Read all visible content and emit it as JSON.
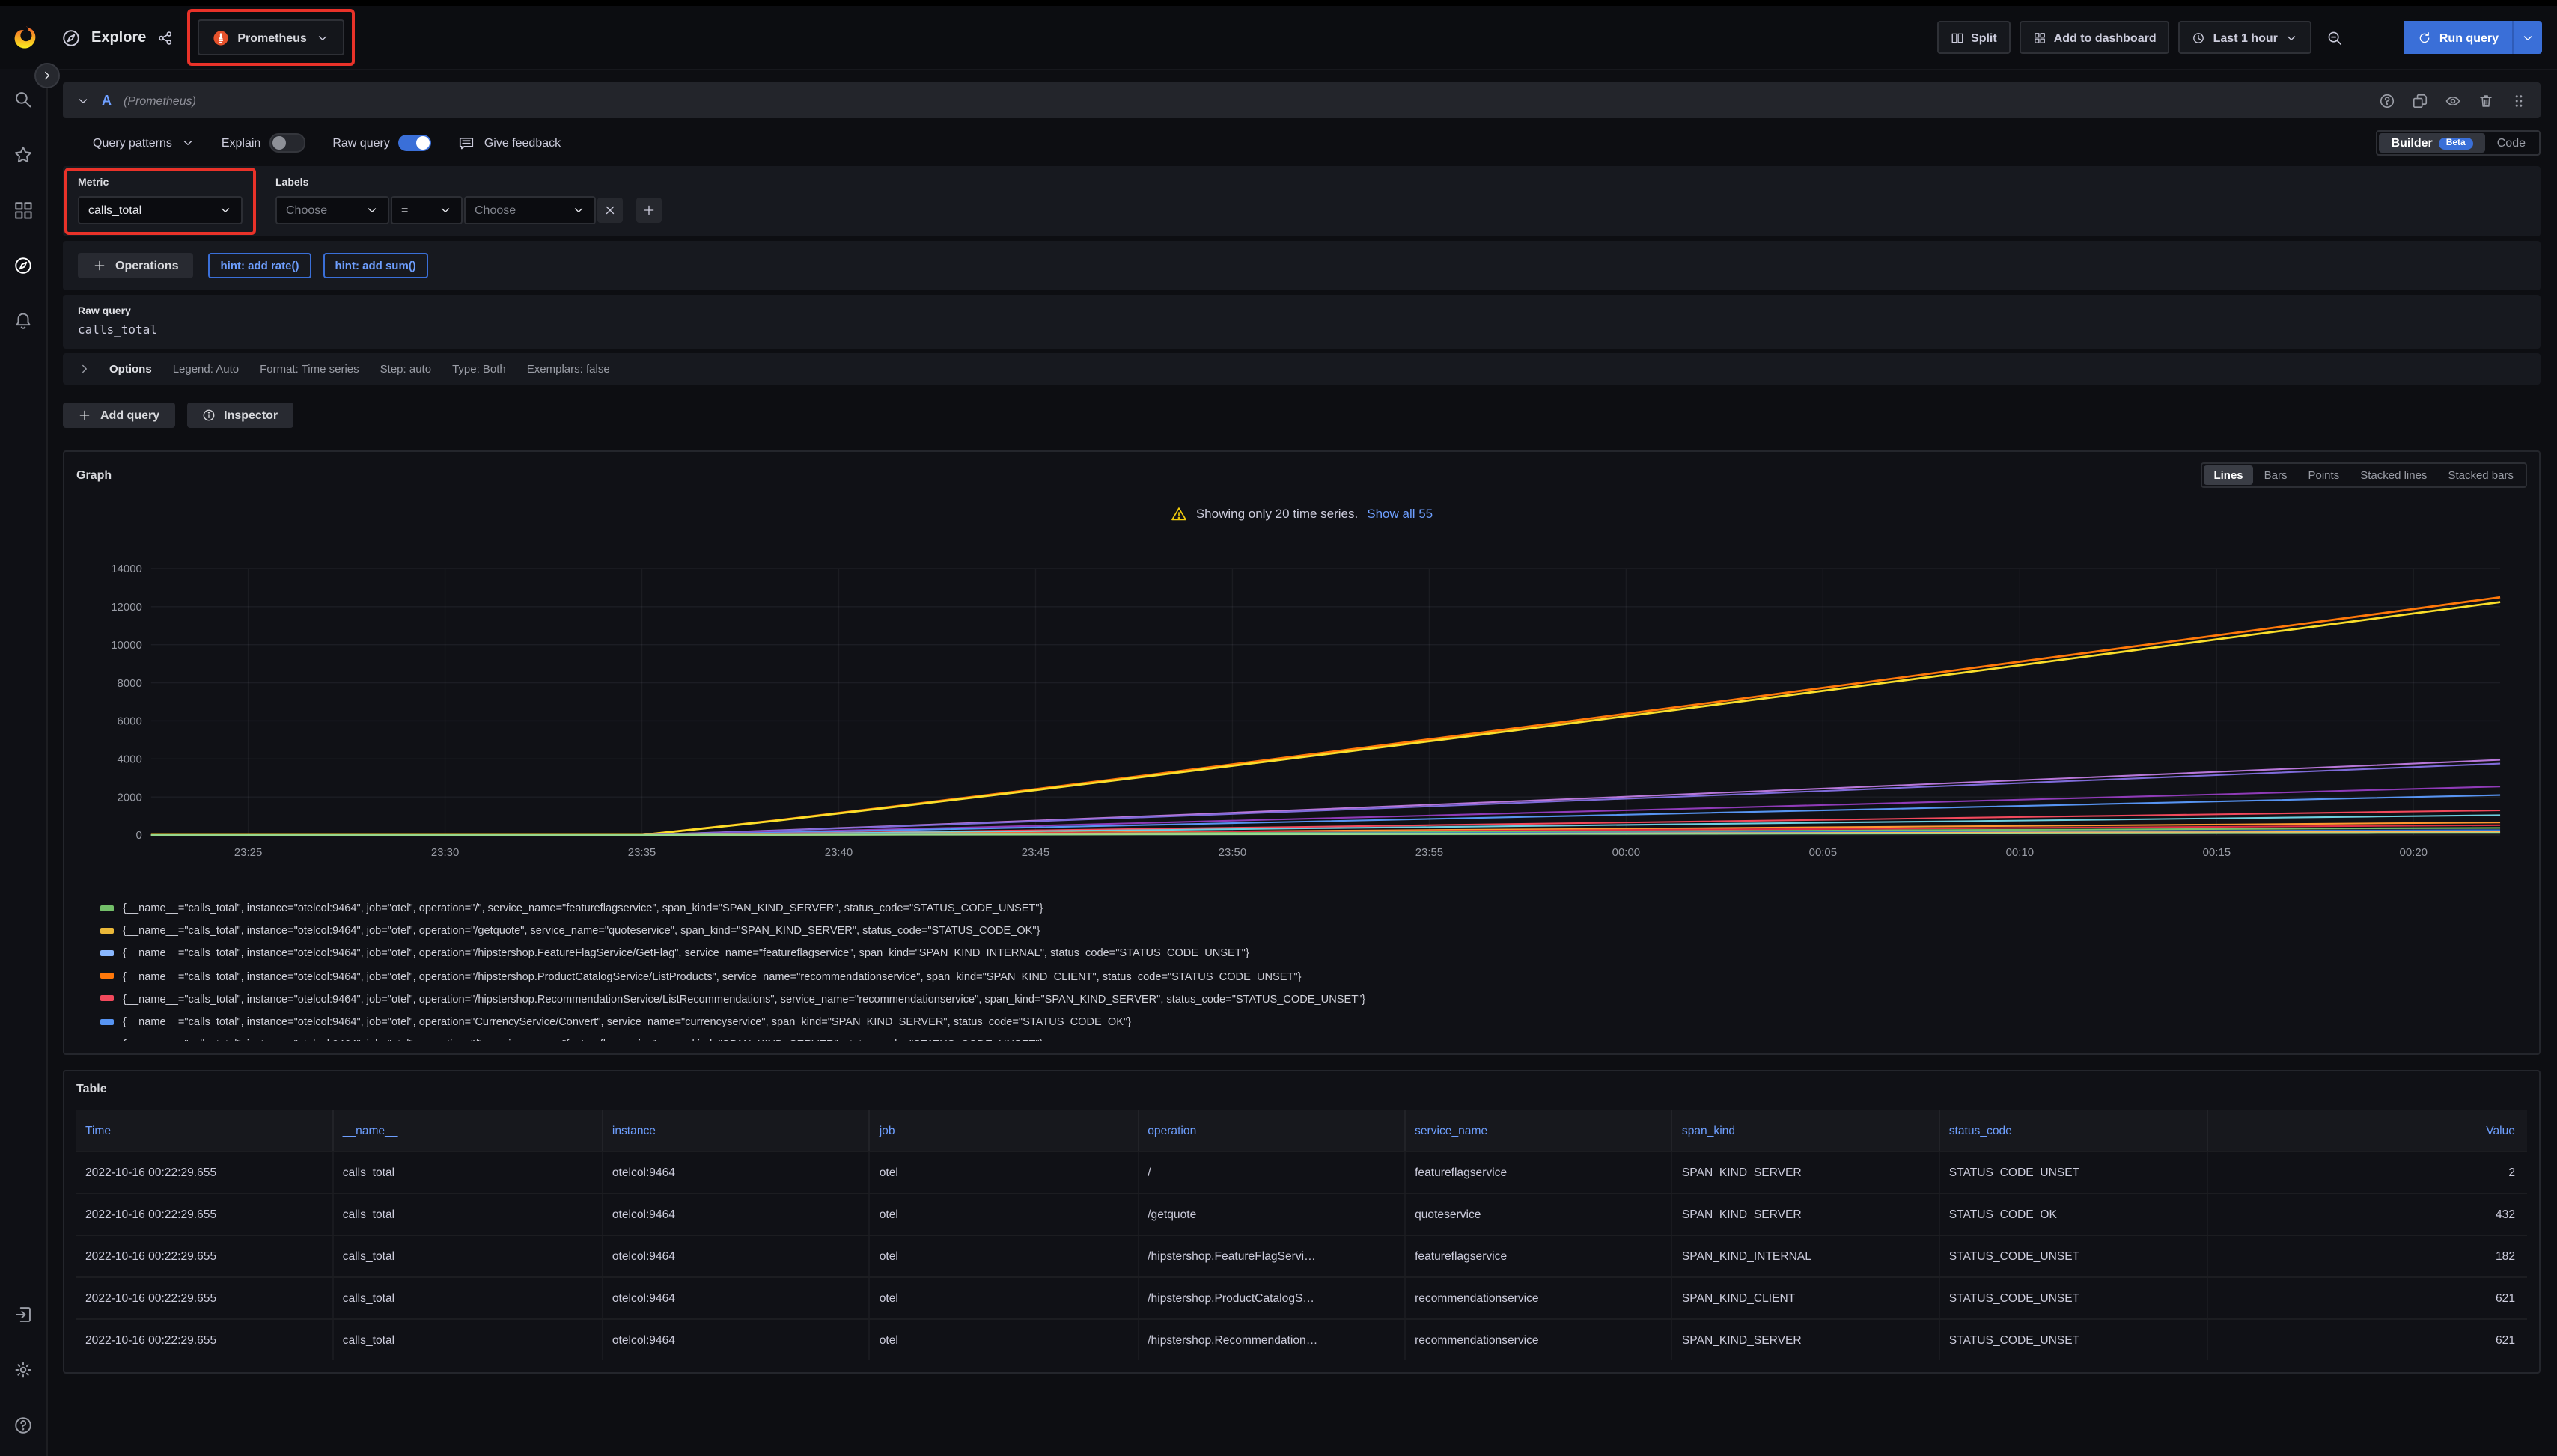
{
  "header": {
    "title": "Explore",
    "datasource": "Prometheus",
    "split": "Split",
    "add_to_dashboard": "Add to dashboard",
    "time_range": "Last 1 hour",
    "run_query": "Run query"
  },
  "query": {
    "ref_id": "A",
    "datasource_note": "(Prometheus)",
    "query_patterns": "Query patterns",
    "explain_label": "Explain",
    "raw_query_toggle_label": "Raw query",
    "give_feedback": "Give feedback",
    "builder": "Builder",
    "beta": "Beta",
    "code": "Code",
    "metric_label": "Metric",
    "metric_value": "calls_total",
    "labels_label": "Labels",
    "label_key_placeholder": "Choose",
    "label_operator": "=",
    "label_value_placeholder": "Choose",
    "operations_label": "Operations",
    "hints": [
      "hint: add rate()",
      "hint: add sum()"
    ],
    "raw_query_label": "Raw query",
    "raw_query_value": "calls_total",
    "options_label": "Options",
    "options_items": [
      "Legend: Auto",
      "Format: Time series",
      "Step: auto",
      "Type: Both",
      "Exemplars: false"
    ],
    "add_query": "Add query",
    "inspector": "Inspector"
  },
  "graph": {
    "title": "Graph",
    "modes": [
      "Lines",
      "Bars",
      "Points",
      "Stacked lines",
      "Stacked bars"
    ],
    "active_mode": "Lines",
    "warning_text": "Showing only 20 time series.",
    "show_all_link": "Show all 55",
    "legend": [
      {
        "color": "#73BF69",
        "label": "{__name__=\"calls_total\", instance=\"otelcol:9464\", job=\"otel\", operation=\"/\", service_name=\"featureflagservice\", span_kind=\"SPAN_KIND_SERVER\", status_code=\"STATUS_CODE_UNSET\"}"
      },
      {
        "color": "#EAB839",
        "label": "{__name__=\"calls_total\", instance=\"otelcol:9464\", job=\"otel\", operation=\"/getquote\", service_name=\"quoteservice\", span_kind=\"SPAN_KIND_SERVER\", status_code=\"STATUS_CODE_OK\"}"
      },
      {
        "color": "#8AB8FF",
        "label": "{__name__=\"calls_total\", instance=\"otelcol:9464\", job=\"otel\", operation=\"/hipstershop.FeatureFlagService/GetFlag\", service_name=\"featureflagservice\", span_kind=\"SPAN_KIND_INTERNAL\", status_code=\"STATUS_CODE_UNSET\"}"
      },
      {
        "color": "#FF780A",
        "label": "{__name__=\"calls_total\", instance=\"otelcol:9464\", job=\"otel\", operation=\"/hipstershop.ProductCatalogService/ListProducts\", service_name=\"recommendationservice\", span_kind=\"SPAN_KIND_CLIENT\", status_code=\"STATUS_CODE_UNSET\"}"
      },
      {
        "color": "#F2495C",
        "label": "{__name__=\"calls_total\", instance=\"otelcol:9464\", job=\"otel\", operation=\"/hipstershop.RecommendationService/ListRecommendations\", service_name=\"recommendationservice\", span_kind=\"SPAN_KIND_SERVER\", status_code=\"STATUS_CODE_UNSET\"}"
      },
      {
        "color": "#5794F2",
        "label": "{__name__=\"calls_total\", instance=\"otelcol:9464\", job=\"otel\", operation=\"CurrencyService/Convert\", service_name=\"currencyservice\", span_kind=\"SPAN_KIND_SERVER\", status_code=\"STATUS_CODE_OK\"}"
      }
    ],
    "legend_clipped_row": true
  },
  "chart_data": {
    "type": "line",
    "title": "Graph",
    "x_ticks": [
      "23:25",
      "23:30",
      "23:35",
      "23:40",
      "23:45",
      "23:50",
      "23:55",
      "00:00",
      "00:05",
      "00:10",
      "00:15",
      "00:20"
    ],
    "ylim": [
      0,
      14000
    ],
    "y_ticks": [
      0,
      2000,
      4000,
      6000,
      8000,
      10000,
      12000,
      14000
    ],
    "grid": true,
    "legend_position": "bottom",
    "flat_until": "23:35",
    "series": [
      {
        "color": "#FF780A",
        "end_value": 12500
      },
      {
        "color": "#FADE2A",
        "end_value": 12250
      },
      {
        "color": "#B877D9",
        "end_value": 3950
      },
      {
        "color": "#7E6BD9",
        "end_value": 3750
      },
      {
        "color": "#8F3BB8",
        "end_value": 2550
      },
      {
        "color": "#5794F2",
        "end_value": 2100
      },
      {
        "color": "#F2495C",
        "end_value": 1300
      },
      {
        "color": "#6ED0E0",
        "end_value": 1050
      },
      {
        "color": "#FF9830",
        "end_value": 660
      },
      {
        "color": "#E02F44",
        "end_value": 520
      },
      {
        "color": "#73BF69",
        "end_value": 380
      },
      {
        "color": "#3274D9",
        "end_value": 260
      },
      {
        "color": "#FFB357",
        "end_value": 180
      },
      {
        "color": "#96D98D",
        "end_value": 110
      }
    ]
  },
  "table": {
    "title": "Table",
    "columns": [
      "Time",
      "__name__",
      "instance",
      "job",
      "operation",
      "service_name",
      "span_kind",
      "status_code",
      "Value"
    ],
    "rows": [
      [
        "2022-10-16 00:22:29.655",
        "calls_total",
        "otelcol:9464",
        "otel",
        "/",
        "featureflagservice",
        "SPAN_KIND_SERVER",
        "STATUS_CODE_UNSET",
        "2"
      ],
      [
        "2022-10-16 00:22:29.655",
        "calls_total",
        "otelcol:9464",
        "otel",
        "/getquote",
        "quoteservice",
        "SPAN_KIND_SERVER",
        "STATUS_CODE_OK",
        "432"
      ],
      [
        "2022-10-16 00:22:29.655",
        "calls_total",
        "otelcol:9464",
        "otel",
        "/hipstershop.FeatureFlagServi…",
        "featureflagservice",
        "SPAN_KIND_INTERNAL",
        "STATUS_CODE_UNSET",
        "182"
      ],
      [
        "2022-10-16 00:22:29.655",
        "calls_total",
        "otelcol:9464",
        "otel",
        "/hipstershop.ProductCatalogS…",
        "recommendationservice",
        "SPAN_KIND_CLIENT",
        "STATUS_CODE_UNSET",
        "621"
      ],
      [
        "2022-10-16 00:22:29.655",
        "calls_total",
        "otelcol:9464",
        "otel",
        "/hipstershop.Recommendation…",
        "recommendationservice",
        "SPAN_KIND_SERVER",
        "STATUS_CODE_UNSET",
        "621"
      ]
    ]
  }
}
